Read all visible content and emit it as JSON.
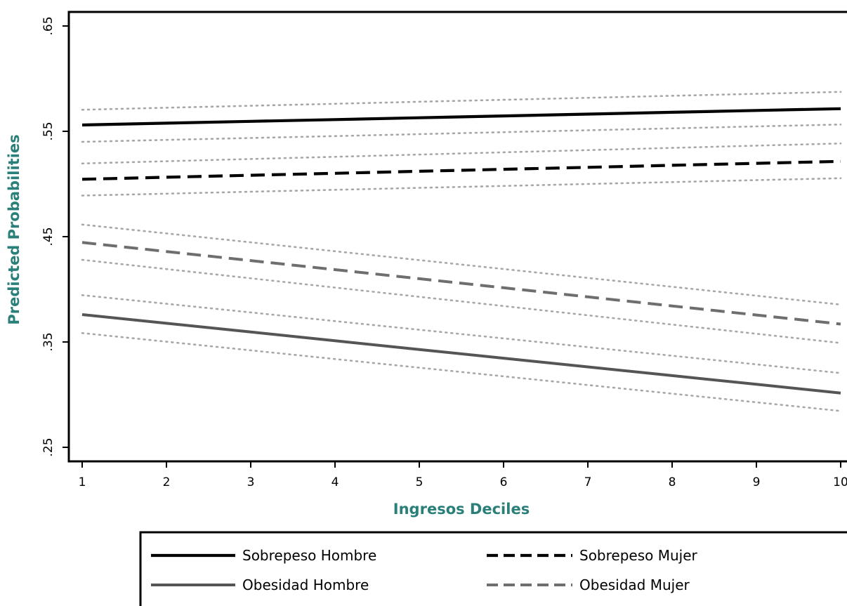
{
  "chart_data": {
    "type": "line",
    "xlabel": "Ingresos Deciles",
    "ylabel": "Predicted Probabilities",
    "x": [
      1,
      2,
      3,
      4,
      5,
      6,
      7,
      8,
      9,
      10
    ],
    "xticks": [
      "1",
      "2",
      "3",
      "4",
      "5",
      "6",
      "7",
      "8",
      "9",
      "10"
    ],
    "ylim": [
      0.25,
      0.65
    ],
    "yticks": [
      0.25,
      0.35,
      0.45,
      0.55,
      0.65
    ],
    "ytick_labels": [
      ".25",
      ".35",
      ".45",
      ".55",
      ".65"
    ],
    "grid": false,
    "legend_position": "bottom",
    "series": [
      {
        "name": "Sobrepeso Hombre",
        "color": "#000000",
        "style": "solid",
        "endpoints": [
          0.556,
          0.5715
        ],
        "ci_lower": [
          0.54,
          0.5565
        ],
        "ci_upper": [
          0.5705,
          0.5875
        ]
      },
      {
        "name": "Sobrepeso Mujer",
        "color": "#000000",
        "style": "dashed",
        "endpoints": [
          0.5045,
          0.5215
        ],
        "ci_lower": [
          0.489,
          0.5055
        ],
        "ci_upper": [
          0.5195,
          0.5385
        ]
      },
      {
        "name": "Obesidad Hombre",
        "color": "#555555",
        "style": "solid",
        "endpoints": [
          0.376,
          0.3015
        ],
        "ci_lower": [
          0.3585,
          0.2845
        ],
        "ci_upper": [
          0.3945,
          0.3205
        ]
      },
      {
        "name": "Obesidad Mujer",
        "color": "#6e6e6e",
        "style": "dashed",
        "endpoints": [
          0.4445,
          0.367
        ],
        "ci_lower": [
          0.428,
          0.349
        ],
        "ci_upper": [
          0.4615,
          0.3855
        ]
      }
    ]
  }
}
